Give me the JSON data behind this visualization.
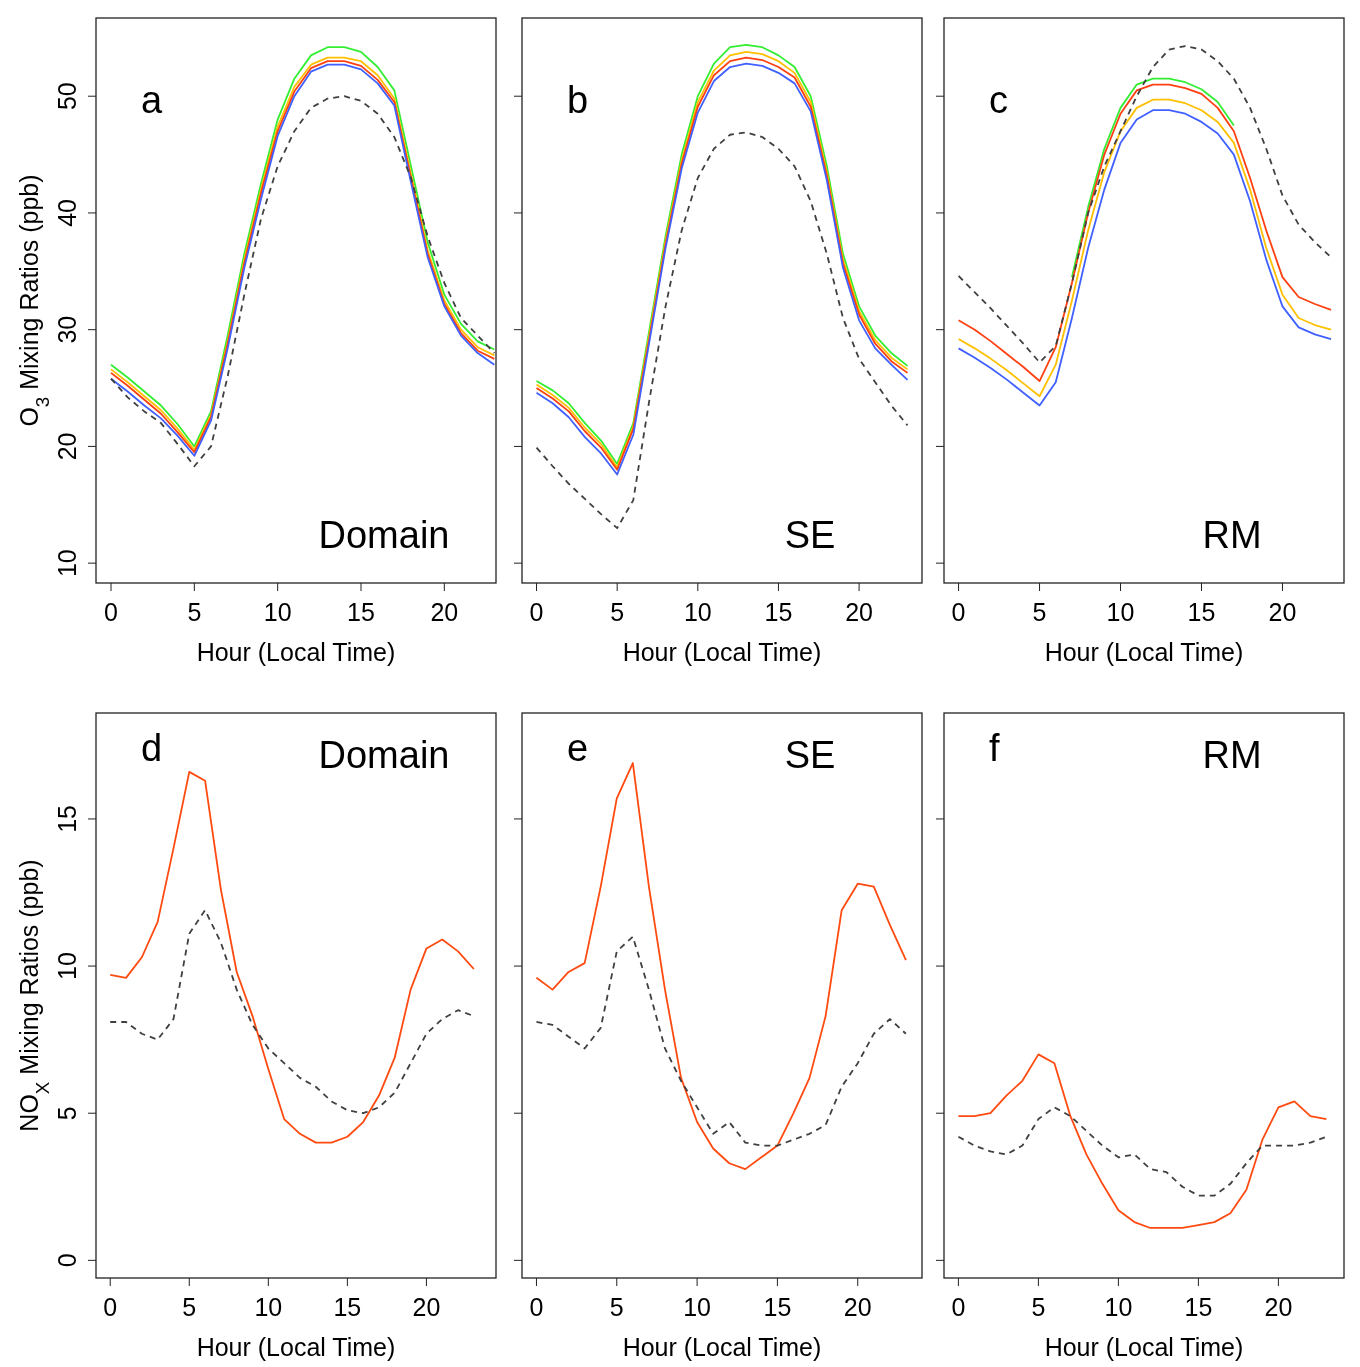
{
  "chart_data": [
    {
      "type": "line",
      "xlabel": "Hour (Local Time)",
      "ylabel": "O$_{3}$ Mixing Ratios (ppb)",
      "x": [
        0,
        1,
        2,
        3,
        4,
        5,
        6,
        7,
        8,
        9,
        10,
        11,
        12,
        13,
        14,
        15,
        16,
        17,
        18,
        19,
        20,
        21,
        22,
        23
      ],
      "xlim": [
        -0.9,
        23.1
      ],
      "ylim": [
        8.3,
        56.7
      ],
      "xticks": [
        0,
        5,
        10,
        15,
        20
      ],
      "yticks": [
        10,
        20,
        30,
        40,
        50
      ],
      "annotations": [
        "a",
        "Domain"
      ],
      "series": [
        {
          "color": "#33ee33",
          "values": [
            27.0,
            25.9,
            24.7,
            23.5,
            21.9,
            20.0,
            23.0,
            29.5,
            36.5,
            42.5,
            48.0,
            51.5,
            53.5,
            54.2,
            54.2,
            53.8,
            52.5,
            50.5,
            44.0,
            37.5,
            33.0,
            30.5,
            29.0,
            28.3
          ]
        },
        {
          "color": "#ffc000",
          "values": [
            26.6,
            25.5,
            24.3,
            23.1,
            21.5,
            19.7,
            22.7,
            29.0,
            36.0,
            42.0,
            47.4,
            50.8,
            52.7,
            53.3,
            53.3,
            53.0,
            51.8,
            49.8,
            43.3,
            36.8,
            32.5,
            30.0,
            28.5,
            27.8
          ]
        },
        {
          "color": "#ff4010",
          "values": [
            26.3,
            25.2,
            24.0,
            22.8,
            21.2,
            19.5,
            22.5,
            28.8,
            35.7,
            41.7,
            47.0,
            50.4,
            52.4,
            53.0,
            53.0,
            52.6,
            51.4,
            49.5,
            43.0,
            36.5,
            32.2,
            29.7,
            28.2,
            27.5
          ]
        },
        {
          "color": "#4060ff",
          "values": [
            25.8,
            24.7,
            23.5,
            22.4,
            20.9,
            19.2,
            22.2,
            28.4,
            35.3,
            41.2,
            46.6,
            50.0,
            52.1,
            52.7,
            52.7,
            52.3,
            51.1,
            49.2,
            42.6,
            36.2,
            32.0,
            29.5,
            28.0,
            27.0
          ]
        },
        {
          "color": "#404040",
          "line_style": "dashed",
          "values": [
            25.8,
            24.2,
            23.0,
            22.0,
            20.2,
            18.3,
            20.0,
            26.0,
            33.0,
            39.5,
            44.0,
            47.0,
            49.0,
            49.8,
            50.0,
            49.6,
            48.5,
            46.5,
            43.0,
            38.0,
            34.0,
            31.0,
            29.5,
            28.0
          ]
        }
      ]
    },
    {
      "type": "line",
      "xlabel": "Hour (Local Time)",
      "x": [
        0,
        1,
        2,
        3,
        4,
        5,
        6,
        7,
        8,
        9,
        10,
        11,
        12,
        13,
        14,
        15,
        16,
        17,
        18,
        19,
        20,
        21,
        22,
        23
      ],
      "xlim": [
        -0.9,
        23.9
      ],
      "ylim": [
        8.3,
        56.7
      ],
      "xticks": [
        0,
        5,
        10,
        15,
        20
      ],
      "yticks": [
        10,
        20,
        30,
        40,
        50
      ],
      "tick_labels": "x",
      "annotations": [
        "b",
        "SE"
      ],
      "series": [
        {
          "color": "#33ee33",
          "values": [
            25.6,
            24.8,
            23.7,
            22.0,
            20.5,
            18.5,
            22.0,
            30.0,
            38.0,
            45.0,
            50.0,
            52.8,
            54.2,
            54.4,
            54.2,
            53.5,
            52.5,
            50.0,
            44.0,
            36.5,
            32.0,
            29.5,
            28.0,
            26.9
          ]
        },
        {
          "color": "#ffc000",
          "values": [
            25.3,
            24.4,
            23.3,
            21.6,
            20.2,
            18.2,
            21.7,
            29.6,
            37.6,
            44.5,
            49.5,
            52.2,
            53.5,
            53.8,
            53.6,
            53.0,
            52.0,
            49.5,
            43.5,
            36.0,
            31.6,
            29.1,
            27.6,
            26.6
          ]
        },
        {
          "color": "#ff4010",
          "values": [
            25.0,
            24.1,
            23.0,
            21.3,
            19.9,
            18.0,
            21.5,
            29.3,
            37.3,
            44.2,
            49.1,
            51.8,
            53.0,
            53.3,
            53.1,
            52.5,
            51.6,
            49.1,
            43.2,
            35.7,
            31.3,
            28.8,
            27.3,
            26.3
          ]
        },
        {
          "color": "#4060ff",
          "values": [
            24.6,
            23.7,
            22.5,
            20.8,
            19.4,
            17.6,
            21.0,
            29.0,
            37.0,
            43.8,
            48.6,
            51.3,
            52.5,
            52.8,
            52.6,
            52.0,
            51.1,
            48.7,
            42.8,
            35.3,
            30.8,
            28.4,
            27.0,
            25.7
          ]
        },
        {
          "color": "#404040",
          "line_style": "dashed",
          "values": [
            19.9,
            18.3,
            16.8,
            15.5,
            14.2,
            13.0,
            15.4,
            24.0,
            32.0,
            38.5,
            43.0,
            45.5,
            46.7,
            46.9,
            46.5,
            45.5,
            44.0,
            41.0,
            36.5,
            31.0,
            27.5,
            25.5,
            23.5,
            21.8
          ]
        }
      ]
    },
    {
      "type": "line",
      "xlabel": "Hour (Local Time)",
      "x": [
        0,
        1,
        2,
        3,
        4,
        5,
        6,
        7,
        8,
        9,
        10,
        11,
        12,
        13,
        14,
        15,
        16,
        17,
        18,
        19,
        20,
        21,
        22,
        23
      ],
      "xlim": [
        -0.9,
        23.8
      ],
      "ylim": [
        8.3,
        56.7
      ],
      "xticks": [
        0,
        5,
        10,
        15,
        20
      ],
      "yticks": [
        10,
        20,
        30,
        40,
        50
      ],
      "tick_labels": "x",
      "annotations": [
        "c",
        "RM"
      ],
      "series": [
        {
          "color": "#33ee33",
          "values": [
            null,
            null,
            null,
            null,
            null,
            null,
            null,
            34.5,
            40.5,
            45.5,
            49.0,
            51.0,
            51.5,
            51.5,
            51.2,
            50.6,
            49.5,
            47.5,
            null,
            null,
            null,
            null,
            null,
            null
          ]
        },
        {
          "color": "#ffc000",
          "values": [
            29.2,
            28.4,
            27.5,
            26.5,
            25.4,
            24.3,
            27.0,
            32.5,
            38.5,
            43.5,
            47.0,
            49.0,
            49.7,
            49.7,
            49.4,
            48.8,
            47.8,
            46.0,
            42.0,
            37.0,
            33.0,
            31.0,
            30.4,
            30.0
          ]
        },
        {
          "color": "#ff4010",
          "values": [
            30.8,
            30.0,
            29.0,
            27.9,
            26.8,
            25.6,
            28.5,
            34.0,
            40.0,
            45.0,
            48.5,
            50.5,
            51.0,
            51.0,
            50.7,
            50.2,
            49.0,
            47.0,
            43.0,
            38.5,
            34.5,
            32.8,
            32.2,
            31.7
          ]
        },
        {
          "color": "#4060ff",
          "values": [
            28.4,
            27.6,
            26.7,
            25.7,
            24.6,
            23.5,
            25.5,
            31.0,
            37.0,
            42.0,
            46.0,
            48.0,
            48.8,
            48.8,
            48.5,
            47.8,
            46.8,
            45.0,
            41.0,
            36.0,
            32.0,
            30.2,
            29.6,
            29.2
          ]
        },
        {
          "color": "#404040",
          "line_style": "dashed",
          "values": [
            34.6,
            33.2,
            31.8,
            30.3,
            28.8,
            27.2,
            28.6,
            34.0,
            40.0,
            44.0,
            47.0,
            50.0,
            52.5,
            54.0,
            54.3,
            54.0,
            53.0,
            51.5,
            49.0,
            45.5,
            41.5,
            39.0,
            37.5,
            36.2
          ]
        }
      ]
    },
    {
      "type": "line",
      "xlabel": "Hour (Local Time)",
      "ylabel": "NO$_{X}$ Mixing Ratios (ppb)",
      "x": [
        0,
        1,
        2,
        3,
        4,
        5,
        6,
        7,
        8,
        9,
        10,
        11,
        12,
        13,
        14,
        15,
        16,
        17,
        18,
        19,
        20,
        21,
        22,
        23
      ],
      "xlim": [
        -0.9,
        24.4
      ],
      "ylim": [
        -0.6,
        18.6
      ],
      "xticks": [
        0,
        5,
        10,
        15,
        20
      ],
      "yticks": [
        0,
        5,
        10,
        15
      ],
      "annotations": [
        "d",
        "Domain"
      ],
      "series": [
        {
          "color": "#ff4a10",
          "values": [
            9.7,
            9.6,
            10.3,
            11.5,
            14.0,
            16.6,
            16.3,
            12.6,
            9.8,
            8.3,
            6.5,
            4.8,
            4.3,
            4.0,
            4.0,
            4.2,
            4.7,
            5.6,
            6.9,
            9.2,
            10.6,
            10.9,
            10.5,
            9.9
          ]
        },
        {
          "color": "#404040",
          "line_style": "dashed",
          "values": [
            8.1,
            8.1,
            7.7,
            7.5,
            8.2,
            11.1,
            11.9,
            10.8,
            9.2,
            8.0,
            7.2,
            6.7,
            6.2,
            5.9,
            5.4,
            5.1,
            5.0,
            5.2,
            5.7,
            6.7,
            7.7,
            8.2,
            8.5,
            8.3
          ]
        }
      ]
    },
    {
      "type": "line",
      "xlabel": "Hour (Local Time)",
      "x": [
        0,
        1,
        2,
        3,
        4,
        5,
        6,
        7,
        8,
        9,
        10,
        11,
        12,
        13,
        14,
        15,
        16,
        17,
        18,
        19,
        20,
        21,
        22,
        23
      ],
      "xlim": [
        -0.9,
        24.0
      ],
      "ylim": [
        -0.6,
        18.6
      ],
      "xticks": [
        0,
        5,
        10,
        15,
        20
      ],
      "yticks": [
        0,
        5,
        10,
        15
      ],
      "tick_labels": "x",
      "annotations": [
        "e",
        "SE"
      ],
      "series": [
        {
          "color": "#ff4a10",
          "values": [
            9.6,
            9.2,
            9.8,
            10.1,
            12.7,
            15.7,
            16.9,
            12.7,
            9.2,
            6.2,
            4.7,
            3.8,
            3.3,
            3.1,
            3.5,
            3.9,
            5.0,
            6.2,
            8.3,
            11.9,
            12.8,
            12.7,
            11.4,
            10.2
          ]
        },
        {
          "color": "#404040",
          "line_style": "dashed",
          "values": [
            8.1,
            8.0,
            7.6,
            7.2,
            7.9,
            10.5,
            11.0,
            9.2,
            7.2,
            6.1,
            5.2,
            4.3,
            4.7,
            4.0,
            3.9,
            3.9,
            4.1,
            4.3,
            4.6,
            5.9,
            6.7,
            7.7,
            8.2,
            7.7
          ]
        }
      ]
    },
    {
      "type": "line",
      "xlabel": "Hour (Local Time)",
      "x": [
        0,
        1,
        2,
        3,
        4,
        5,
        6,
        7,
        8,
        9,
        10,
        11,
        12,
        13,
        14,
        15,
        16,
        17,
        18,
        19,
        20,
        21,
        22,
        23
      ],
      "xlim": [
        -0.9,
        24.1
      ],
      "ylim": [
        -0.6,
        18.6
      ],
      "xticks": [
        0,
        5,
        10,
        15,
        20
      ],
      "yticks": [
        0,
        5,
        10,
        15
      ],
      "tick_labels": "x",
      "annotations": [
        "f",
        "RM"
      ],
      "series": [
        {
          "color": "#ff4a10",
          "values": [
            4.9,
            4.9,
            5.0,
            5.6,
            6.1,
            7.0,
            6.7,
            4.9,
            3.6,
            2.6,
            1.7,
            1.3,
            1.1,
            1.1,
            1.1,
            1.2,
            1.3,
            1.6,
            2.4,
            4.1,
            5.2,
            5.4,
            4.9,
            4.8
          ]
        },
        {
          "color": "#404040",
          "line_style": "dashed",
          "values": [
            4.2,
            3.9,
            3.7,
            3.6,
            3.9,
            4.8,
            5.2,
            4.9,
            4.4,
            3.9,
            3.5,
            3.6,
            3.1,
            3.0,
            2.5,
            2.2,
            2.2,
            2.6,
            3.3,
            3.9,
            3.9,
            3.9,
            4.0,
            4.2
          ]
        }
      ]
    }
  ]
}
